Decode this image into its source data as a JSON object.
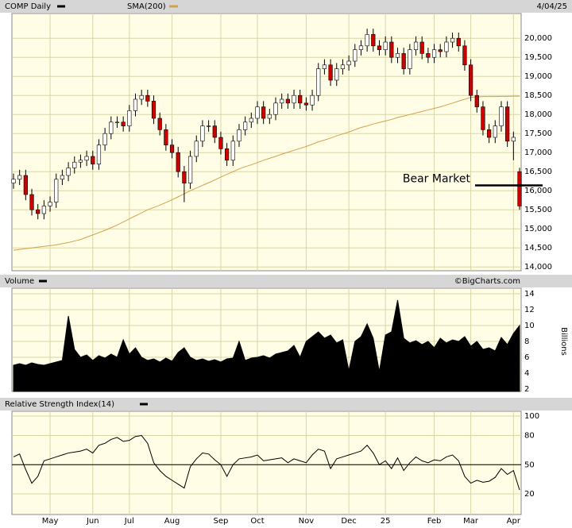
{
  "chart_data": [
    {
      "type": "candlestick",
      "title": "COMP Daily",
      "date": "4/04/25",
      "color": "#000000",
      "up_color": "#ffffff",
      "down_color": "#cc0000",
      "open": [
        16200,
        16300,
        16400,
        15900,
        15500,
        15400,
        15600,
        15700,
        16300,
        16400,
        16600,
        16750,
        16800,
        16900,
        16700,
        17200,
        17500,
        17800,
        17800,
        17700,
        18100,
        18400,
        18500,
        18350,
        17900,
        17600,
        17200,
        17000,
        16500,
        16200,
        16900,
        17300,
        17700,
        17700,
        17400,
        17100,
        16800,
        17300,
        17600,
        17800,
        17900,
        18200,
        17900,
        18000,
        18300,
        18400,
        18300,
        18500,
        18300,
        18250,
        18500,
        19200,
        19300,
        18900,
        19200,
        19300,
        19400,
        19700,
        19800,
        20100,
        19800,
        19700,
        19900,
        19500,
        19600,
        19200,
        19700,
        19900,
        19600,
        19500,
        19700,
        19650,
        19900,
        20000,
        19800,
        19300,
        18500,
        18200,
        17600,
        17400,
        17700,
        18200,
        17300,
        16500
      ],
      "high": [
        16450,
        16550,
        16550,
        16050,
        15650,
        15750,
        15850,
        16450,
        16550,
        16750,
        16900,
        16950,
        17050,
        17050,
        17350,
        17650,
        17950,
        17950,
        17950,
        18250,
        18550,
        18650,
        18650,
        18500,
        18050,
        17750,
        17350,
        17150,
        16650,
        17050,
        17450,
        17850,
        17850,
        17850,
        17550,
        17250,
        17450,
        17750,
        17950,
        18050,
        18350,
        18350,
        18150,
        18450,
        18550,
        18550,
        18650,
        18650,
        18450,
        18650,
        19350,
        19450,
        19450,
        19350,
        19450,
        19550,
        19850,
        19950,
        20250,
        20250,
        19950,
        20050,
        20050,
        19750,
        19750,
        19850,
        20050,
        20050,
        19750,
        19850,
        19850,
        20050,
        20150,
        20150,
        19950,
        19450,
        18650,
        18350,
        17750,
        17850,
        18350,
        18350,
        17550,
        16600
      ],
      "low": [
        16050,
        16150,
        15750,
        15350,
        15250,
        15250,
        15450,
        15550,
        16150,
        16250,
        16450,
        16600,
        16650,
        16550,
        16550,
        17050,
        17350,
        17650,
        17550,
        17550,
        17950,
        18250,
        18200,
        17750,
        17450,
        17050,
        16850,
        16350,
        15700,
        16050,
        16750,
        17150,
        17550,
        17250,
        16950,
        16650,
        16650,
        17150,
        17450,
        17650,
        17750,
        17750,
        17750,
        17850,
        18150,
        18150,
        18150,
        18150,
        18100,
        18100,
        18350,
        19050,
        18750,
        18750,
        19050,
        19150,
        19250,
        19550,
        19650,
        19650,
        19550,
        19550,
        19350,
        19350,
        19050,
        19050,
        19550,
        19450,
        19350,
        19350,
        19500,
        19500,
        19750,
        19650,
        19150,
        18350,
        18050,
        17450,
        17250,
        17250,
        17550,
        17150,
        16800,
        15500
      ],
      "close": [
        16300,
        16400,
        15900,
        15500,
        15400,
        15600,
        15700,
        16300,
        16400,
        16600,
        16750,
        16800,
        16900,
        16700,
        17200,
        17500,
        17800,
        17800,
        17700,
        18100,
        18400,
        18500,
        18350,
        17900,
        17600,
        17200,
        17000,
        16500,
        16200,
        16900,
        17300,
        17700,
        17700,
        17400,
        17100,
        16800,
        17300,
        17600,
        17800,
        17900,
        18200,
        17900,
        18000,
        18300,
        18400,
        18300,
        18500,
        18300,
        18250,
        18500,
        19200,
        19300,
        18900,
        19200,
        19300,
        19400,
        19700,
        19800,
        20100,
        19800,
        19700,
        19900,
        19500,
        19600,
        19200,
        19700,
        19900,
        19600,
        19500,
        19700,
        19650,
        19900,
        20000,
        19800,
        19300,
        18500,
        18200,
        17600,
        17400,
        17700,
        18200,
        17300,
        17400,
        15600
      ],
      "series": [
        {
          "name": "SMA(200)",
          "color": "#d4a24c",
          "values": [
            14440,
            14460,
            14480,
            14500,
            14520,
            14540,
            14560,
            14580,
            14610,
            14640,
            14680,
            14720,
            14780,
            14840,
            14900,
            14960,
            15030,
            15100,
            15180,
            15260,
            15340,
            15420,
            15500,
            15560,
            15620,
            15690,
            15760,
            15840,
            15920,
            16000,
            16070,
            16140,
            16210,
            16280,
            16360,
            16430,
            16500,
            16570,
            16630,
            16680,
            16740,
            16800,
            16850,
            16900,
            16960,
            17010,
            17060,
            17110,
            17160,
            17220,
            17280,
            17330,
            17380,
            17440,
            17490,
            17540,
            17600,
            17660,
            17700,
            17750,
            17790,
            17830,
            17870,
            17920,
            17960,
            18000,
            18040,
            18080,
            18120,
            18160,
            18200,
            18250,
            18300,
            18350,
            18400,
            18450,
            18460,
            18470,
            18470,
            18470,
            18475,
            18475,
            18480,
            18480
          ]
        }
      ],
      "ylim": [
        13900,
        20650
      ],
      "yticks": [
        {
          "value": 14000,
          "label": "14,000"
        },
        {
          "value": 14500,
          "label": "14,500"
        },
        {
          "value": 15000,
          "label": "15,000"
        },
        {
          "value": 15500,
          "label": "15,500"
        },
        {
          "value": 16000,
          "label": "16,000"
        },
        {
          "value": 16500,
          "label": "16,500"
        },
        {
          "value": 17000,
          "label": "17,000"
        },
        {
          "value": 17500,
          "label": "17,500"
        },
        {
          "value": 18000,
          "label": "18,000"
        },
        {
          "value": 18500,
          "label": "18,500"
        },
        {
          "value": 19000,
          "label": "19,000"
        },
        {
          "value": 19500,
          "label": "19,500"
        },
        {
          "value": 20000,
          "label": "20,000"
        }
      ],
      "grid": true,
      "annotations": [
        {
          "text": "Bear Market",
          "value": 16140
        }
      ]
    },
    {
      "type": "area",
      "title": "Volume",
      "source": "©BigCharts.com",
      "ylabel": "Billions",
      "color": "#000000",
      "values": [
        5.0,
        5.2,
        5.0,
        5.3,
        5.1,
        5.0,
        5.2,
        5.4,
        5.6,
        11.2,
        7.0,
        6.0,
        6.3,
        5.6,
        6.2,
        5.9,
        6.4,
        6.0,
        8.2,
        6.4,
        7.2,
        6.0,
        5.6,
        5.8,
        5.4,
        5.9,
        5.5,
        6.6,
        7.2,
        6.0,
        5.6,
        5.8,
        5.5,
        5.7,
        5.4,
        5.8,
        5.9,
        8.0,
        5.6,
        5.9,
        6.0,
        6.2,
        5.9,
        6.4,
        6.6,
        6.8,
        7.5,
        6.0,
        8.0,
        8.6,
        9.2,
        8.4,
        8.8,
        7.8,
        8.2,
        4.3,
        8.0,
        8.6,
        10.2,
        8.4,
        4.2,
        8.8,
        9.2,
        13.2,
        8.4,
        7.8,
        8.1,
        7.6,
        8.0,
        7.2,
        8.4,
        7.8,
        8.2,
        8.0,
        8.6,
        7.4,
        8.0,
        7.0,
        7.2,
        6.8,
        8.5,
        7.6,
        9.0,
        10.0
      ],
      "ylim": [
        1.7,
        14.7
      ],
      "yticks": [
        2,
        4,
        6,
        8,
        10,
        12,
        14
      ],
      "grid": true
    },
    {
      "type": "line",
      "title": "Relative Strength Index(14)",
      "color": "#000000",
      "categories": [
        null,
        null,
        null,
        null,
        null,
        null,
        "May",
        null,
        null,
        null,
        null,
        null,
        null,
        "Jun",
        null,
        null,
        null,
        null,
        null,
        "Jul",
        null,
        null,
        null,
        null,
        null,
        null,
        "Aug",
        null,
        null,
        null,
        null,
        null,
        null,
        null,
        "Sep",
        null,
        null,
        null,
        null,
        null,
        "Oct",
        null,
        null,
        null,
        null,
        null,
        null,
        null,
        "Nov",
        null,
        null,
        null,
        null,
        null,
        null,
        "Dec",
        null,
        null,
        null,
        null,
        null,
        "25",
        null,
        null,
        null,
        null,
        null,
        null,
        null,
        "Feb",
        null,
        null,
        null,
        null,
        null,
        "Mar",
        null,
        null,
        null,
        null,
        null,
        null,
        "Apr",
        null
      ],
      "values": [
        58,
        61,
        45,
        31,
        38,
        54,
        56,
        58,
        60,
        62,
        63,
        64,
        66,
        62,
        70,
        72,
        76,
        78,
        74,
        75,
        79,
        80,
        72,
        52,
        44,
        38,
        34,
        30,
        26,
        48,
        56,
        62,
        61,
        55,
        50,
        38,
        50,
        56,
        57,
        58,
        60,
        54,
        55,
        56,
        57,
        52,
        56,
        54,
        52,
        60,
        66,
        64,
        46,
        56,
        58,
        60,
        62,
        64,
        70,
        62,
        50,
        54,
        46,
        57,
        44,
        52,
        58,
        54,
        52,
        55,
        54,
        58,
        60,
        54,
        38,
        31,
        34,
        32,
        33,
        37,
        46,
        40,
        44,
        24
      ],
      "ylim": [
        -1.2,
        104.9
      ],
      "yticks": [
        20,
        50,
        80,
        100
      ],
      "grid": true,
      "reference_line": 50
    }
  ]
}
